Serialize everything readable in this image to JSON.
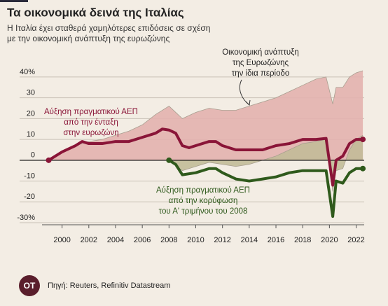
{
  "logo": "ΟΤ",
  "chart_data": {
    "type": "line",
    "title": "Τα οικονομικά δεινά της Ιταλίας",
    "subtitle": [
      "Η Ιταλία έχει σταθερά χαμηλότερες επιδόσεις σε σχέση",
      "με την οικονομική ανάπτυξη της ευρωζώνης"
    ],
    "source": "Πηγή: Reuters, Refinitiv Datastream",
    "xlim": [
      1998.5,
      2022.6
    ],
    "xticks": [
      2000,
      2002,
      2004,
      2006,
      2008,
      2010,
      2012,
      2014,
      2016,
      2018,
      2020,
      2022
    ],
    "ylim": [
      -31,
      43
    ],
    "yticks": [
      {
        "value": 40,
        "label": "40%"
      },
      30,
      20,
      10,
      0,
      -10,
      -20,
      {
        "value": -30,
        "label": "-30%"
      }
    ],
    "grid": true,
    "series": [
      {
        "style": "area",
        "color": "#e3b1ae",
        "x": [
          1999,
          2000,
          2001,
          2002,
          2003,
          2004,
          2005,
          2006,
          2007,
          2008,
          2009,
          2010,
          2011,
          2012,
          2013,
          2014,
          2015,
          2016,
          2017,
          2018,
          2019,
          2019.75,
          2020.25,
          2020.5,
          2021,
          2021.5,
          2022,
          2022.5
        ],
        "values": [
          0,
          4,
          7,
          9,
          10,
          12,
          14,
          17,
          22,
          26,
          20,
          23,
          25,
          24,
          24,
          26,
          28,
          30,
          33,
          36,
          39,
          40,
          27,
          35,
          35,
          40,
          42,
          43
        ]
      },
      {
        "style": "area",
        "color": "#c2bb98",
        "x": [
          2008,
          2009,
          2010,
          2011,
          2012,
          2013,
          2014,
          2015,
          2016,
          2017,
          2018,
          2019,
          2019.75,
          2020.25,
          2020.5,
          2021,
          2021.5,
          2022,
          2022.5
        ],
        "values": [
          0,
          -5,
          -3,
          -1,
          -2,
          -3,
          -2,
          0,
          2,
          5,
          8,
          9,
          10,
          -15,
          -5,
          -4,
          5,
          10,
          12
        ]
      },
      {
        "style": "line",
        "color": "#8a1538",
        "x": [
          1999,
          2000,
          2001,
          2001.5,
          2002,
          2003,
          2004,
          2005,
          2006,
          2007,
          2007.5,
          2008,
          2008.5,
          2009,
          2009.5,
          2010,
          2011,
          2011.5,
          2012,
          2013,
          2014,
          2015,
          2016,
          2017,
          2018,
          2019,
          2019.75,
          2020.25,
          2020.5,
          2021,
          2021.5,
          2022,
          2022.5
        ],
        "values": [
          0,
          4,
          7,
          9,
          8,
          8,
          9,
          9,
          11,
          13,
          15,
          14.5,
          13,
          7,
          6,
          7,
          9,
          9,
          7,
          5,
          5,
          5,
          7,
          8,
          10,
          10,
          10.5,
          -12,
          0,
          2,
          8,
          10,
          10
        ]
      },
      {
        "style": "line",
        "color": "#2f5a1c",
        "x": [
          2008,
          2008.5,
          2009,
          2010,
          2011,
          2011.5,
          2012,
          2013,
          2014,
          2015,
          2016,
          2017,
          2018,
          2019,
          2019.75,
          2020.25,
          2020.5,
          2021,
          2021.5,
          2022,
          2022.5
        ],
        "values": [
          0,
          -2,
          -7,
          -6,
          -4,
          -4,
          -6,
          -9,
          -10,
          -9,
          -8,
          -6,
          -5,
          -5,
          -5,
          -27,
          -10,
          -11,
          -6,
          -4,
          -4
        ]
      }
    ],
    "annotations": [
      {
        "lines": [
          "Οικονομική ανάπτυξη",
          "της Ευρωζώνης",
          "την ίδια περίοδο"
        ],
        "color": "#222"
      },
      {
        "lines": [
          "Αύξηση πραγματικού ΑΕΠ",
          "από την ένταξη",
          "στην ευρωζώνη"
        ],
        "color": "#8a1538"
      },
      {
        "lines": [
          "Αύξηση πραγματικού ΑΕΠ",
          "από την κορύφωση",
          "του Α' τριμήνου του 2008"
        ],
        "color": "#2f5a1c"
      }
    ]
  }
}
